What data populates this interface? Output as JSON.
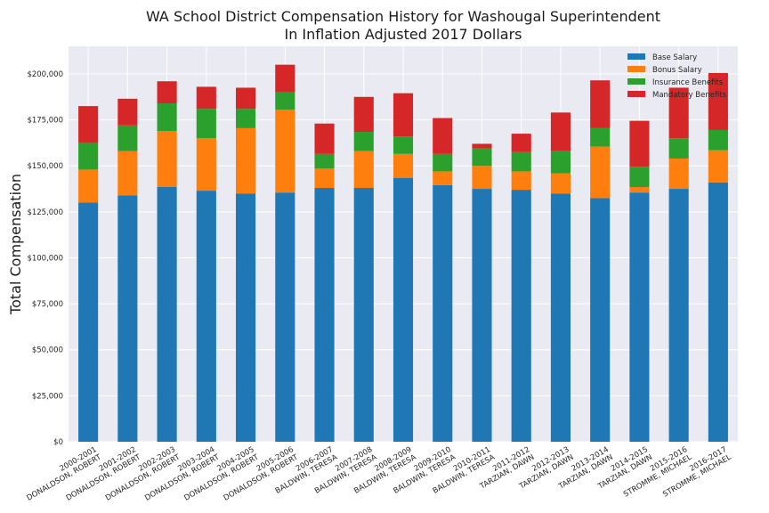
{
  "chart_data": {
    "type": "bar",
    "stacked": true,
    "title": "WA School District Compensation History for Washougal Superintendent",
    "subtitle": "In Inflation Adjusted 2017 Dollars",
    "ylabel": "Total Compensation",
    "xlabel": "",
    "ylim": [
      0,
      215000
    ],
    "yticks": [
      0,
      25000,
      50000,
      75000,
      100000,
      125000,
      150000,
      175000,
      200000
    ],
    "ytick_labels": [
      "$0",
      "$25,000",
      "$50,000",
      "$75,000",
      "$100,000",
      "$125,000",
      "$150,000",
      "$175,000",
      "$200,000"
    ],
    "grid": true,
    "legend_position": "top-right",
    "categories": [
      [
        "2000-2001",
        "DONALDSON, ROBERT"
      ],
      [
        "2001-2002",
        "DONALDSON, ROBERT"
      ],
      [
        "2002-2003",
        "DONALDSON, ROBERT"
      ],
      [
        "2003-2004",
        "DONALDSON, ROBERT"
      ],
      [
        "2004-2005",
        "DONALDSON, ROBERT"
      ],
      [
        "2005-2006",
        "DONALDSON, ROBERT"
      ],
      [
        "2006-2007",
        "BALDWIN, TERESA"
      ],
      [
        "2007-2008",
        "BALDWIN, TERESA"
      ],
      [
        "2008-2009",
        "BALDWIN, TERESA"
      ],
      [
        "2009-2010",
        "BALDWIN, TERESA"
      ],
      [
        "2010-2011",
        "BALDWIN, TERESA"
      ],
      [
        "2011-2012",
        "TARZIAN, DAWN"
      ],
      [
        "2012-2013",
        "TARZIAN, DAWN"
      ],
      [
        "2013-2014",
        "TARZIAN, DAWN"
      ],
      [
        "2014-2015",
        "TARZIAN, DAWN"
      ],
      [
        "2015-2016",
        "STROMME, MICHAEL"
      ],
      [
        "2016-2017",
        "STROMME, MICHAEL"
      ]
    ],
    "series": [
      {
        "name": "Base Salary",
        "color": "#1f77b4",
        "values": [
          130000,
          134000,
          138500,
          136500,
          135000,
          135500,
          138000,
          138000,
          143500,
          139500,
          137500,
          137000,
          135000,
          132500,
          135500,
          137500,
          141000
        ]
      },
      {
        "name": "Bonus Salary",
        "color": "#ff7f0e",
        "values": [
          18000,
          24000,
          30500,
          28500,
          35500,
          45000,
          10500,
          20000,
          13000,
          7500,
          12500,
          10000,
          11000,
          28000,
          3000,
          16500,
          17500
        ]
      },
      {
        "name": "Insurance Benefits",
        "color": "#2ca02c",
        "values": [
          14500,
          14000,
          15000,
          16000,
          10500,
          9500,
          8000,
          10500,
          9500,
          9500,
          9500,
          10500,
          12000,
          10000,
          11000,
          11000,
          11000
        ]
      },
      {
        "name": "Mandatory Benefits",
        "color": "#d62728",
        "values": [
          20000,
          14500,
          12000,
          12000,
          11500,
          15000,
          16500,
          19000,
          23500,
          19500,
          2500,
          10000,
          21000,
          26000,
          25000,
          27500,
          31000
        ]
      }
    ]
  }
}
